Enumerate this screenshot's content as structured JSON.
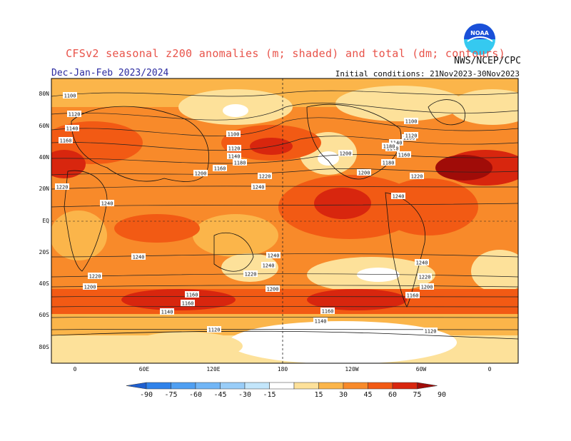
{
  "title": "CFSv2 seasonal z200 anomalies (m; shaded) and total (dm; contours)",
  "agency": "NWS/NCEP/CPC",
  "period": "Dec-Jan-Feb 2023/2024",
  "initial_conditions": "Initial conditions: 21Nov2023-30Nov2023",
  "logo": {
    "name": "noaa-logo",
    "text": "NOAA",
    "colors": [
      "#1a4fd8",
      "#35c9f0"
    ]
  },
  "map": {
    "lat_ticks": [
      "80N",
      "60N",
      "40N",
      "20N",
      "EQ",
      "20S",
      "40S",
      "60S",
      "80S"
    ],
    "lon_ticks": [
      "0",
      "60E",
      "120E",
      "180",
      "120W",
      "60W",
      "0"
    ]
  },
  "contour_labels": [
    "1100",
    "1120",
    "1140",
    "1160",
    "1100",
    "1120",
    "1140",
    "1160",
    "1180",
    "1200",
    "1220",
    "1240",
    "1220",
    "1240",
    "1200",
    "1220",
    "1240",
    "1180",
    "1160",
    "1140",
    "1160",
    "1120",
    "1100",
    "1240",
    "1240",
    "1240",
    "1220",
    "1200",
    "1220",
    "1240",
    "1200",
    "1160",
    "1160",
    "1140",
    "1160",
    "1140",
    "1120",
    "1120",
    "1220",
    "1200",
    "1160",
    "1140",
    "1180",
    "1200"
  ],
  "colorbar": {
    "labels": [
      "-90",
      "-75",
      "-60",
      "-45",
      "-30",
      "-15",
      "15",
      "30",
      "45",
      "60",
      "75",
      "90"
    ],
    "colors": [
      "#1e5fd0",
      "#2f82ea",
      "#4f9ff2",
      "#72b6f6",
      "#99cdf8",
      "#c3e6fb",
      "#ffffff",
      "#fde19a",
      "#fbb54a",
      "#f88a2a",
      "#f25a14",
      "#d8260e",
      "#a00c08"
    ]
  }
}
